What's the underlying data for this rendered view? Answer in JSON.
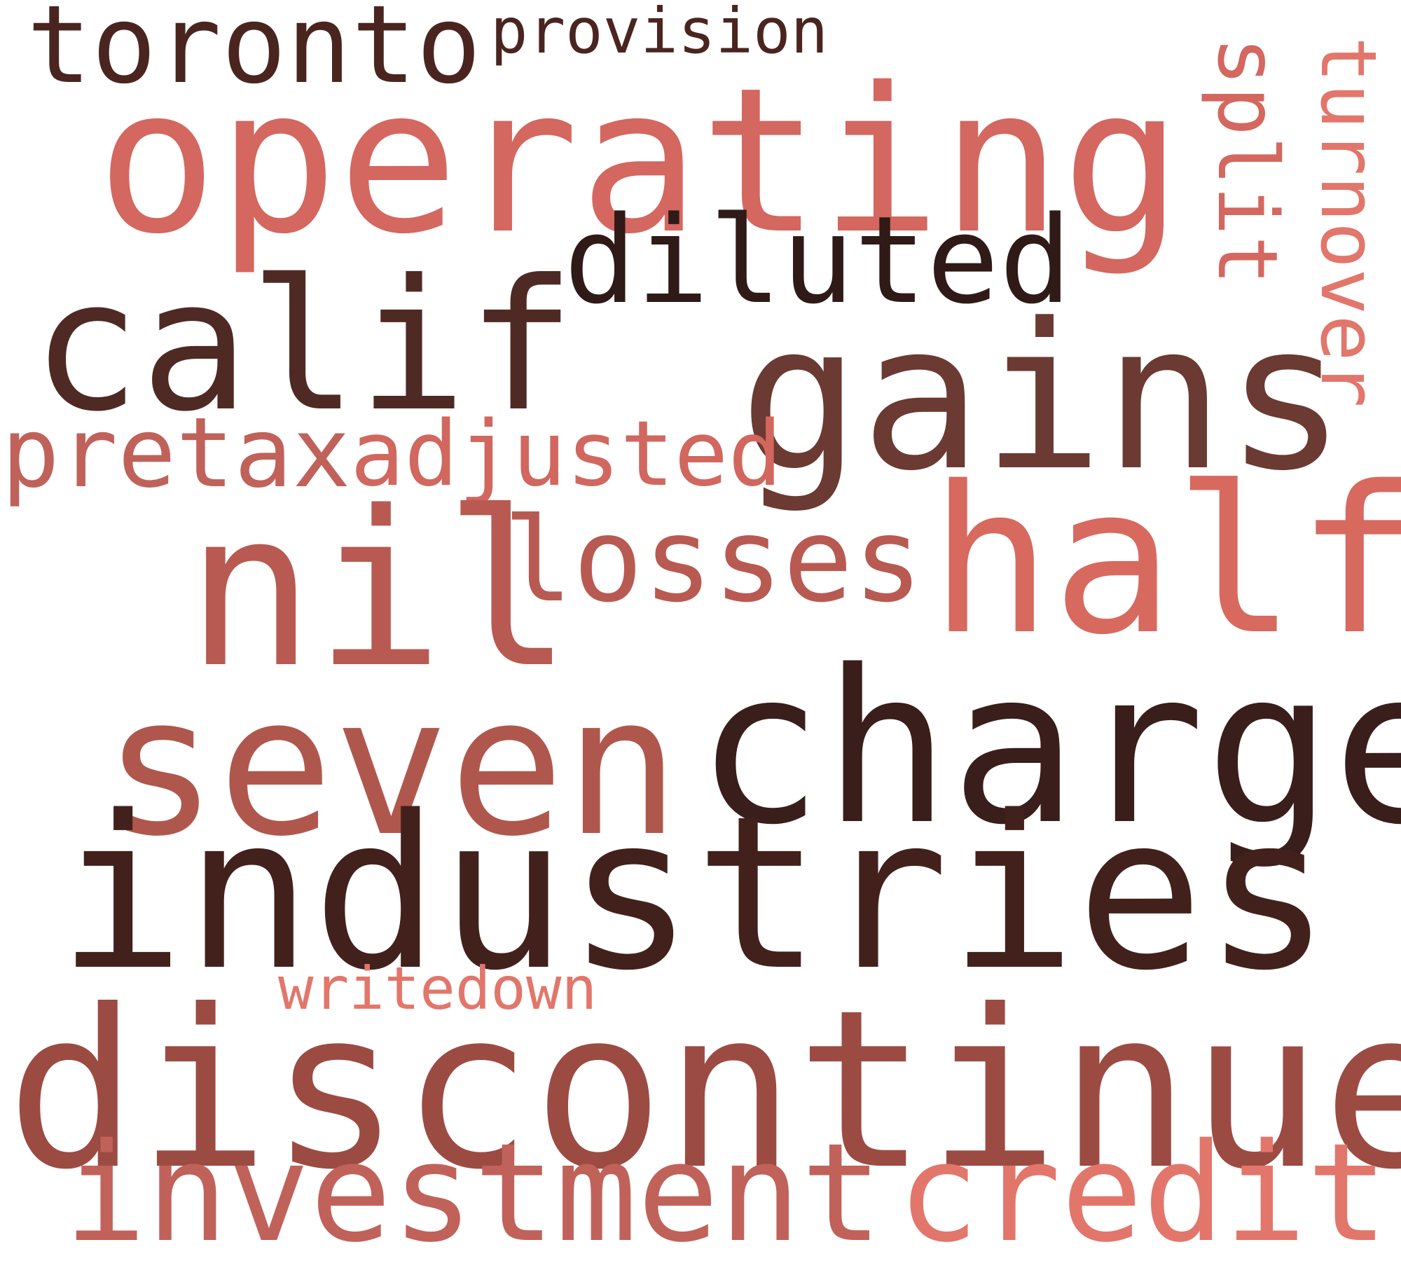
{
  "words": {
    "toronto": {
      "text": "toronto",
      "color": "#4a2520"
    },
    "provision": {
      "text": "provision",
      "color": "#4a2520"
    },
    "operating": {
      "text": "operating",
      "color": "#d4675f"
    },
    "diluted": {
      "text": "diluted",
      "color": "#2f1a18"
    },
    "calif": {
      "text": "calif",
      "color": "#4f2a24"
    },
    "gains": {
      "text": "gains",
      "color": "#6b3a32"
    },
    "split": {
      "text": "split",
      "color": "#d4675f"
    },
    "turnover": {
      "text": "turnover",
      "color": "#e2766b"
    },
    "pretax": {
      "text": "pretax",
      "color": "#c0625a"
    },
    "adjusted": {
      "text": "adjusted",
      "color": "#d1675e"
    },
    "nil": {
      "text": "nil",
      "color": "#b85a51"
    },
    "losses": {
      "text": "losses",
      "color": "#b85a51"
    },
    "half": {
      "text": "half",
      "color": "#d8695f"
    },
    "seven": {
      "text": "seven",
      "color": "#b0574d"
    },
    "charge": {
      "text": "charge",
      "color": "#3a1e1b"
    },
    "industries": {
      "text": "industries",
      "color": "#42211d"
    },
    "writedown": {
      "text": "writedown",
      "color": "#e2766b"
    },
    "discontinued": {
      "text": "discontinued",
      "color": "#9c4b43"
    },
    "investment": {
      "text": "investment",
      "color": "#c0625a"
    },
    "credits": {
      "text": "credits",
      "color": "#e2766b"
    }
  }
}
